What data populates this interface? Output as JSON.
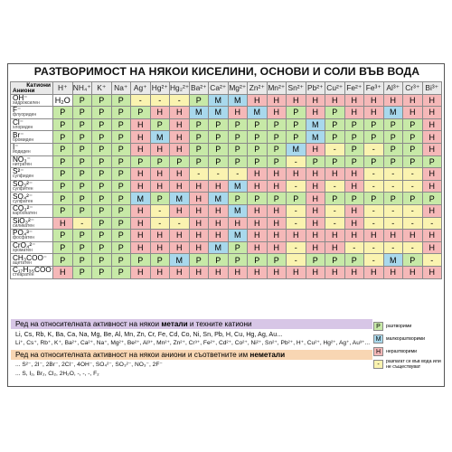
{
  "title": "РАЗТВОРИМОСТ НА НЯКОИ КИСЕЛИНИ, ОСНОВИ И СОЛИ ВЪВ ВОДА",
  "corner": {
    "cations": "Катиони",
    "anions": "Аниони"
  },
  "cations": [
    "H⁺",
    "NH₄⁺",
    "K⁺",
    "Na⁺",
    "Ag⁺",
    "Hg²⁺",
    "Hg₂²⁺",
    "Ba²⁺",
    "Ca²⁺",
    "Mg²⁺",
    "Zn²⁺",
    "Mn²⁺",
    "Sn²⁺",
    "Pb²⁺",
    "Cu²⁺",
    "Fe²⁺",
    "Fe³⁺",
    "Al³⁺",
    "Cr³⁺",
    "Bi³⁺"
  ],
  "rows": [
    {
      "formula": "OH⁻",
      "name": "хидроксилен",
      "cells": [
        "H₂O",
        "P",
        "P",
        "P",
        "-",
        "-",
        "-",
        "P",
        "M",
        "M",
        "H",
        "H",
        "H",
        "H",
        "H",
        "H",
        "H",
        "H",
        "H",
        "H"
      ]
    },
    {
      "formula": "F⁻",
      "name": "флуориден",
      "cells": [
        "P",
        "P",
        "P",
        "P",
        "P",
        "H",
        "H",
        "M",
        "M",
        "H",
        "M",
        "H",
        "P",
        "H",
        "P",
        "H",
        "H",
        "M",
        "H",
        "H"
      ]
    },
    {
      "formula": "Cl⁻",
      "name": "хлориден",
      "cells": [
        "P",
        "P",
        "P",
        "P",
        "H",
        "P",
        "H",
        "P",
        "P",
        "P",
        "P",
        "P",
        "P",
        "M",
        "P",
        "P",
        "P",
        "P",
        "P",
        "H"
      ]
    },
    {
      "formula": "Br⁻",
      "name": "бромиден",
      "cells": [
        "P",
        "P",
        "P",
        "P",
        "H",
        "M",
        "H",
        "P",
        "P",
        "P",
        "P",
        "P",
        "P",
        "M",
        "P",
        "P",
        "P",
        "P",
        "P",
        "H"
      ]
    },
    {
      "formula": "I⁻",
      "name": "йодиден",
      "cells": [
        "P",
        "P",
        "P",
        "P",
        "H",
        "H",
        "H",
        "P",
        "P",
        "P",
        "P",
        "P",
        "M",
        "H",
        "-",
        "P",
        "-",
        "P",
        "P",
        "H"
      ]
    },
    {
      "formula": "NO₃⁻",
      "name": "нитратен",
      "cells": [
        "P",
        "P",
        "P",
        "P",
        "P",
        "P",
        "P",
        "P",
        "P",
        "P",
        "P",
        "P",
        "-",
        "P",
        "P",
        "P",
        "P",
        "P",
        "P",
        "P"
      ]
    },
    {
      "formula": "S²⁻",
      "name": "сулфиден",
      "cells": [
        "P",
        "P",
        "P",
        "P",
        "H",
        "H",
        "H",
        "-",
        "-",
        "-",
        "H",
        "H",
        "H",
        "H",
        "H",
        "H",
        "-",
        "-",
        "-",
        "H"
      ]
    },
    {
      "formula": "SO₃²⁻",
      "name": "сулфитен",
      "cells": [
        "P",
        "P",
        "P",
        "P",
        "H",
        "H",
        "H",
        "H",
        "H",
        "M",
        "H",
        "H",
        "-",
        "H",
        "-",
        "H",
        "-",
        "-",
        "-",
        "H"
      ]
    },
    {
      "formula": "SO₄²⁻",
      "name": "сулфатен",
      "cells": [
        "P",
        "P",
        "P",
        "P",
        "M",
        "P",
        "M",
        "H",
        "M",
        "P",
        "P",
        "P",
        "P",
        "H",
        "P",
        "P",
        "P",
        "P",
        "P",
        "P"
      ]
    },
    {
      "formula": "CO₃²⁻",
      "name": "карбонатен",
      "cells": [
        "P",
        "P",
        "P",
        "P",
        "H",
        "-",
        "H",
        "H",
        "H",
        "M",
        "H",
        "H",
        "-",
        "H",
        "-",
        "H",
        "-",
        "-",
        "-",
        "H"
      ]
    },
    {
      "formula": "SiO₃²⁻",
      "name": "силикатен",
      "cells": [
        "H",
        "-",
        "P",
        "P",
        "H",
        "-",
        "-",
        "H",
        "H",
        "H",
        "H",
        "H",
        "-",
        "H",
        "-",
        "H",
        "-",
        "-",
        "-",
        "-"
      ]
    },
    {
      "formula": "PO₄³⁻",
      "name": "фосфатен",
      "cells": [
        "P",
        "P",
        "P",
        "P",
        "H",
        "H",
        "H",
        "H",
        "H",
        "M",
        "H",
        "H",
        "H",
        "H",
        "H",
        "H",
        "H",
        "H",
        "H",
        "H"
      ]
    },
    {
      "formula": "CrO₄²⁻",
      "name": "хроматен",
      "cells": [
        "P",
        "P",
        "P",
        "P",
        "H",
        "H",
        "H",
        "H",
        "M",
        "P",
        "H",
        "H",
        "-",
        "H",
        "H",
        "-",
        "-",
        "-",
        "-",
        "H"
      ]
    },
    {
      "formula": "CH₃COO⁻",
      "name": "ацетатен",
      "cells": [
        "P",
        "P",
        "P",
        "P",
        "P",
        "P",
        "M",
        "P",
        "P",
        "P",
        "P",
        "P",
        "-",
        "P",
        "P",
        "P",
        "-",
        "M",
        "P",
        "-"
      ]
    },
    {
      "formula": "C₁₇H₃₅COO⁻",
      "name": "стеаратен",
      "cells": [
        "H",
        "P",
        "P",
        "P",
        "H",
        "H",
        "H",
        "H",
        "H",
        "H",
        "H",
        "H",
        "H",
        "H",
        "H",
        "H",
        "H",
        "H",
        "H",
        "H"
      ]
    }
  ],
  "metals_section": {
    "prefix": "Ред на относителната активност на някои ",
    "bold": "метали",
    "suffix": " и техните катиони"
  },
  "metals_row": "Li, Cs, Rb, K, Ba, Ca, Na, Mg, Be, Al, Mn, Zn, Cr, Fe, Cd, Co, Ni, Sn, Pb, H, Cu, Hg, Ag, Au...",
  "cations_row": "Li⁺, Cs⁺, Rb⁺, K⁺, Ba²⁺, Ca²⁺, Na⁺, Mg²⁺, Be²⁺, Al³⁺, Mn²⁺, Zn²⁺, Cr³⁺, Fe²⁺, Cd²⁺, Co²⁺, Ni²⁺, Sn²⁺, Pb²⁺, H⁺, Cu²⁺, Hg²⁺, Ag⁺, Au³⁺...",
  "anions_section": {
    "prefix": "Ред на относителната активност на някои аниони и съответните им ",
    "bold": "неметали"
  },
  "anions_row": "... S²⁻, 2I⁻, 2Br⁻, 2Cl⁻, 4OH⁻, SO₄²⁻, SO₃²⁻, NO₃⁻, 2F⁻",
  "nonmetals_row": "... S, I₂, Br₂, Cl₂, 2H₂O, -, -, -, F₂",
  "legend": [
    {
      "key": "P",
      "cls": "c-P",
      "text": "разтворими"
    },
    {
      "key": "M",
      "cls": "c-M",
      "text": "малкоразтворими"
    },
    {
      "key": "H",
      "cls": "c-H",
      "text": "неразтворими"
    },
    {
      "key": "-",
      "cls": "c-D",
      "text": "разпагат се във вода или не съществуват"
    }
  ]
}
